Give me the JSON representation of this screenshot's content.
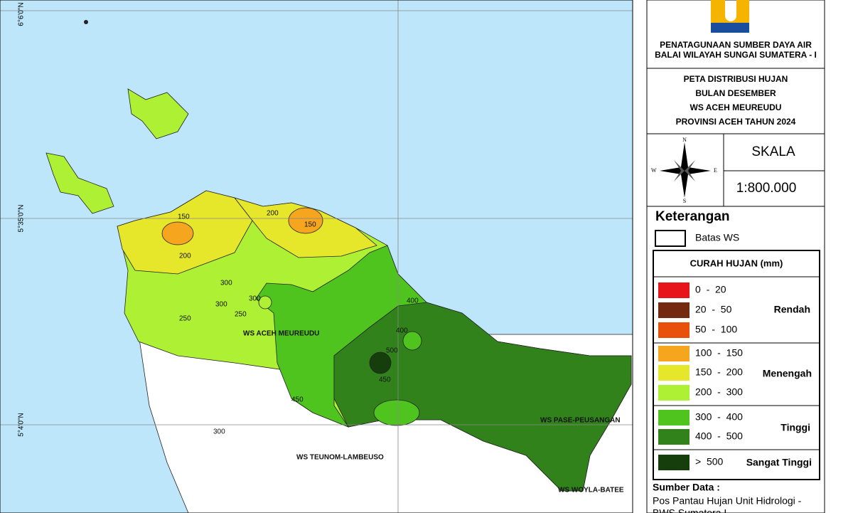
{
  "map": {
    "lat_labels": [
      "6°6'0\"N",
      "5°35'0\"N",
      "5°4'0\"N"
    ],
    "contour_labels": [
      "150",
      "200",
      "150",
      "200",
      "300",
      "250",
      "300",
      "250",
      "300",
      "400",
      "400",
      "500",
      "450",
      "450",
      "300"
    ],
    "region_labels": [
      "WS ACEH MEUREUDU",
      "WS PASE-PEUSANGAN",
      "WS TEUNOM-LAMBEUSO",
      "WS WOYLA-BATEE"
    ]
  },
  "panel": {
    "org": [
      "PENATAGUNAAN SUMBER DAYA AIR",
      "BALAI WILAYAH SUNGAI SUMATERA - I"
    ],
    "title": [
      "PETA DISTRIBUSI HUJAN",
      "BULAN DESEMBER",
      "WS ACEH MEUREUDU",
      "PROVINSI ACEH TAHUN 2024"
    ],
    "compass": {
      "n": "N",
      "e": "E",
      "s": "S",
      "w": "W"
    },
    "scale_title": "SKALA",
    "scale": "1:800.000",
    "legend_title": "Keterangan",
    "boundary": "Batas WS",
    "rain_title": "CURAH HUJAN (mm)",
    "classes": [
      {
        "range": "0  -  20",
        "color": "#e8141c"
      },
      {
        "range": "20  -  50",
        "color": "#732a0e"
      },
      {
        "range": "50  -  100",
        "color": "#e8500c"
      },
      {
        "range": "100  -  150",
        "color": "#f5a51e"
      },
      {
        "range": "150  -  200",
        "color": "#e6e62a"
      },
      {
        "range": "200  -  300",
        "color": "#aef033"
      },
      {
        "range": "300  -  400",
        "color": "#4fc41e"
      },
      {
        "range": "400  -  500",
        "color": "#32821c"
      },
      {
        "range": ">  500",
        "color": "#163d0c"
      }
    ],
    "groups": [
      "Rendah",
      "Menengah",
      "Tinggi",
      "Sangat Tinggi"
    ],
    "source_title": "Sumber Data :",
    "source": [
      "Pos Pantau Hujan Unit Hidrologi -",
      "BWS Sumatera I"
    ]
  }
}
